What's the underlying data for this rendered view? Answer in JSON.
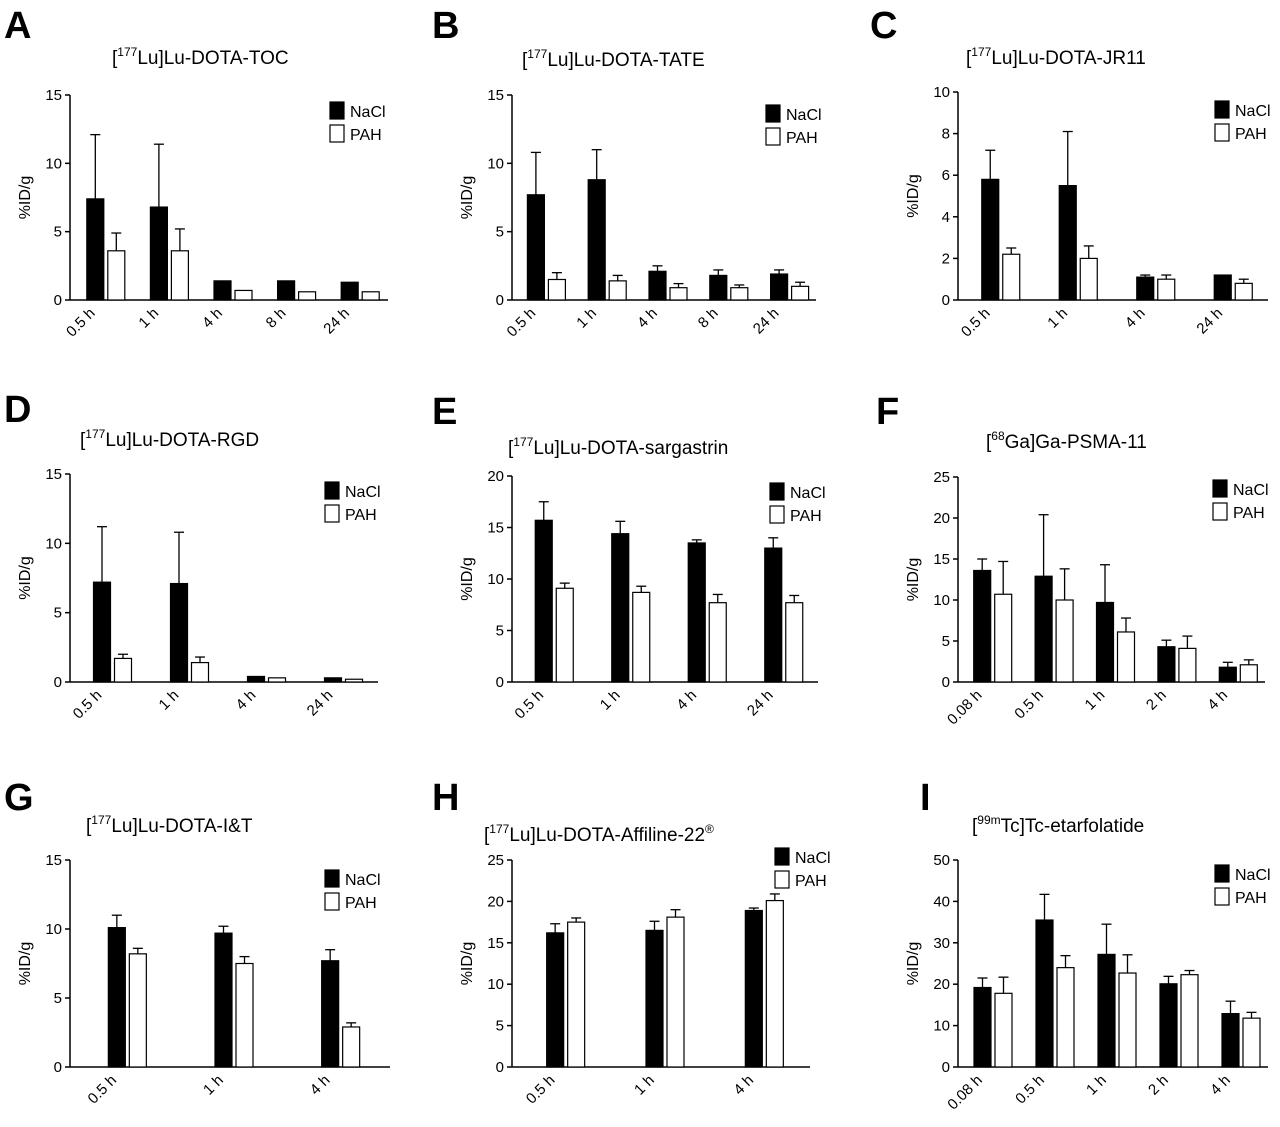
{
  "legend": {
    "nacl": "NaCl",
    "pah": "PAH"
  },
  "colors": {
    "nacl": "#000000",
    "pah": "#ffffff",
    "axis": "#000000"
  },
  "chart_data": [
    {
      "letter": "A",
      "type": "bar",
      "title": {
        "pre": "[",
        "sup": "177",
        "post": "Lu]Lu-DOTA-TOC"
      },
      "ylabel": "%ID/g",
      "ylim": [
        0,
        15
      ],
      "yticks": [
        0,
        5,
        10,
        15
      ],
      "categories": [
        "0.5 h",
        "1 h",
        "4 h",
        "8 h",
        "24 h"
      ],
      "series": [
        {
          "name": "NaCl",
          "values": [
            7.4,
            6.8,
            1.4,
            1.4,
            1.3
          ],
          "errors": [
            4.7,
            4.6,
            0,
            0,
            0
          ]
        },
        {
          "name": "PAH",
          "values": [
            3.6,
            3.6,
            0.7,
            0.6,
            0.6
          ],
          "errors": [
            1.3,
            1.6,
            0,
            0,
            0
          ]
        }
      ],
      "legend_position": "top-right",
      "grid": false
    },
    {
      "letter": "B",
      "type": "bar",
      "title": {
        "pre": "[",
        "sup": "177",
        "post": "Lu]Lu-DOTA-TATE"
      },
      "ylabel": "%ID/g",
      "ylim": [
        0,
        15
      ],
      "yticks": [
        0,
        5,
        10,
        15
      ],
      "categories": [
        "0.5 h",
        "1 h",
        "4 h",
        "8 h",
        "24 h"
      ],
      "series": [
        {
          "name": "NaCl",
          "values": [
            7.7,
            8.8,
            2.1,
            1.8,
            1.9
          ],
          "errors": [
            3.1,
            2.2,
            0.4,
            0.4,
            0.3
          ]
        },
        {
          "name": "PAH",
          "values": [
            1.5,
            1.4,
            0.9,
            0.9,
            1.0
          ],
          "errors": [
            0.5,
            0.4,
            0.3,
            0.2,
            0.3
          ]
        }
      ],
      "legend_position": "top-right",
      "grid": false
    },
    {
      "letter": "C",
      "type": "bar",
      "title": {
        "pre": "[",
        "sup": "177",
        "post": "Lu]Lu-DOTA-JR11"
      },
      "ylabel": "%ID/g",
      "ylim": [
        0,
        10
      ],
      "yticks": [
        0,
        2,
        4,
        6,
        8,
        10
      ],
      "categories": [
        "0.5 h",
        "1 h",
        "4 h",
        "24 h"
      ],
      "series": [
        {
          "name": "NaCl",
          "values": [
            5.8,
            5.5,
            1.1,
            1.2
          ],
          "errors": [
            1.4,
            2.6,
            0.1,
            0
          ]
        },
        {
          "name": "PAH",
          "values": [
            2.2,
            2.0,
            1.0,
            0.8
          ],
          "errors": [
            0.3,
            0.6,
            0.2,
            0.2
          ]
        }
      ],
      "legend_position": "top-right",
      "grid": false
    },
    {
      "letter": "D",
      "type": "bar",
      "title": {
        "pre": "[",
        "sup": "177",
        "post": "Lu]Lu-DOTA-RGD"
      },
      "ylabel": "%ID/g",
      "ylim": [
        0,
        15
      ],
      "yticks": [
        0,
        5,
        10,
        15
      ],
      "categories": [
        "0.5 h",
        "1 h",
        "4 h",
        "24 h"
      ],
      "series": [
        {
          "name": "NaCl",
          "values": [
            7.2,
            7.1,
            0.4,
            0.3
          ],
          "errors": [
            4.0,
            3.7,
            0,
            0
          ]
        },
        {
          "name": "PAH",
          "values": [
            1.7,
            1.4,
            0.3,
            0.2
          ],
          "errors": [
            0.3,
            0.4,
            0,
            0
          ]
        }
      ],
      "legend_position": "top-right",
      "grid": false
    },
    {
      "letter": "E",
      "type": "bar",
      "title": {
        "pre": "[",
        "sup": "177",
        "post": "Lu]Lu-DOTA-sargastrin"
      },
      "ylabel": "%ID/g",
      "ylim": [
        0,
        20
      ],
      "yticks": [
        0,
        5,
        10,
        15,
        20
      ],
      "categories": [
        "0.5 h",
        "1 h",
        "4 h",
        "24 h"
      ],
      "series": [
        {
          "name": "NaCl",
          "values": [
            15.7,
            14.4,
            13.5,
            13.0
          ],
          "errors": [
            1.8,
            1.2,
            0.3,
            1.0
          ]
        },
        {
          "name": "PAH",
          "values": [
            9.1,
            8.7,
            7.7,
            7.7
          ],
          "errors": [
            0.5,
            0.6,
            0.8,
            0.7
          ]
        }
      ],
      "legend_position": "top-right",
      "grid": false
    },
    {
      "letter": "F",
      "type": "bar",
      "title": {
        "pre": "[",
        "sup": "68",
        "post": "Ga]Ga-PSMA-11"
      },
      "ylabel": "%ID/g",
      "ylim": [
        0,
        25
      ],
      "yticks": [
        0,
        5,
        10,
        15,
        20,
        25
      ],
      "categories": [
        "0.08 h",
        "0.5 h",
        "1 h",
        "2 h",
        "4 h"
      ],
      "series": [
        {
          "name": "NaCl",
          "values": [
            13.6,
            12.9,
            9.7,
            4.3,
            1.8
          ],
          "errors": [
            1.4,
            7.5,
            4.6,
            0.8,
            0.6
          ]
        },
        {
          "name": "PAH",
          "values": [
            10.7,
            10.0,
            6.1,
            4.1,
            2.1
          ],
          "errors": [
            4.0,
            3.8,
            1.7,
            1.5,
            0.6
          ]
        }
      ],
      "legend_position": "top-right",
      "grid": false
    },
    {
      "letter": "G",
      "type": "bar",
      "title": {
        "pre": "[",
        "sup": "177",
        "post": "Lu]Lu-DOTA-I&T"
      },
      "ylabel": "%ID/g",
      "ylim": [
        0,
        15
      ],
      "yticks": [
        0,
        5,
        10,
        15
      ],
      "categories": [
        "0.5 h",
        "1 h",
        "4 h"
      ],
      "series": [
        {
          "name": "NaCl",
          "values": [
            10.1,
            9.7,
            7.7
          ],
          "errors": [
            0.9,
            0.5,
            0.8
          ]
        },
        {
          "name": "PAH",
          "values": [
            8.2,
            7.5,
            2.9
          ],
          "errors": [
            0.4,
            0.5,
            0.3
          ]
        }
      ],
      "legend_position": "top-right",
      "grid": false
    },
    {
      "letter": "H",
      "type": "bar",
      "title": {
        "pre": "[",
        "sup": "177",
        "post": "Lu]Lu-DOTA-Affiline-22",
        "reg": "®"
      },
      "ylabel": "%ID/g",
      "ylim": [
        0,
        25
      ],
      "yticks": [
        0,
        5,
        10,
        15,
        20,
        25
      ],
      "categories": [
        "0.5 h",
        "1 h",
        "4 h"
      ],
      "series": [
        {
          "name": "NaCl",
          "values": [
            16.2,
            16.5,
            18.9
          ],
          "errors": [
            1.1,
            1.1,
            0.3
          ]
        },
        {
          "name": "PAH",
          "values": [
            17.5,
            18.1,
            20.1
          ],
          "errors": [
            0.5,
            0.9,
            0.8
          ]
        }
      ],
      "legend_position": "top-right",
      "grid": false
    },
    {
      "letter": "I",
      "type": "bar",
      "title": {
        "pre": "[",
        "sup": "99m",
        "post": "Tc]Tc-etarfolatide"
      },
      "ylabel": "%ID/g",
      "ylim": [
        0,
        50
      ],
      "yticks": [
        0,
        10,
        20,
        30,
        40,
        50
      ],
      "categories": [
        "0.08 h",
        "0.5 h",
        "1 h",
        "2 h",
        "4 h"
      ],
      "series": [
        {
          "name": "NaCl",
          "values": [
            19.2,
            35.5,
            27.2,
            20.1,
            12.9
          ],
          "errors": [
            2.3,
            6.2,
            7.3,
            1.8,
            3.0
          ]
        },
        {
          "name": "PAH",
          "values": [
            17.8,
            24.0,
            22.7,
            22.3,
            11.8
          ],
          "errors": [
            3.9,
            2.9,
            4.4,
            1.0,
            1.4
          ]
        }
      ],
      "legend_position": "top-right",
      "grid": false
    }
  ]
}
